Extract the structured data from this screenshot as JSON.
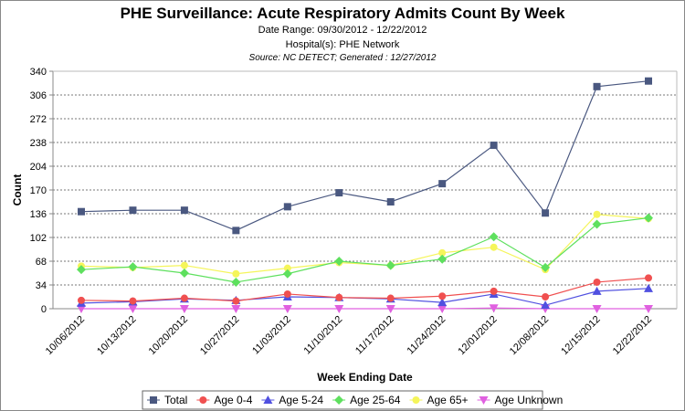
{
  "chart_data": {
    "type": "line",
    "title": "PHE Surveillance: Acute Respiratory Admits Count By Week",
    "subtitles": [
      "Date Range: 09/30/2012 - 12/22/2012",
      "Hospital(s): PHE Network",
      "Source: NC DETECT; Generated : 12/27/2012"
    ],
    "xlabel": "Week Ending Date",
    "ylabel": "Count",
    "ylim": [
      0,
      340
    ],
    "yticks": [
      0,
      34,
      68,
      102,
      136,
      170,
      204,
      238,
      272,
      306,
      340
    ],
    "categories": [
      "10/06/2012",
      "10/13/2012",
      "10/20/2012",
      "10/27/2012",
      "11/03/2012",
      "11/10/2012",
      "11/17/2012",
      "11/24/2012",
      "12/01/2012",
      "12/08/2012",
      "12/15/2012",
      "12/22/2012"
    ],
    "grid": true,
    "legend": "bottom",
    "series": [
      {
        "name": "Total",
        "color": "#4a5880",
        "marker": "square",
        "values": [
          139,
          141,
          141,
          112,
          146,
          166,
          153,
          179,
          234,
          137,
          318,
          326
        ]
      },
      {
        "name": "Age 0-4",
        "color": "#f05050",
        "marker": "circle",
        "values": [
          12,
          11,
          15,
          11,
          21,
          16,
          15,
          18,
          25,
          17,
          38,
          44
        ]
      },
      {
        "name": "Age 5-24",
        "color": "#5050e0",
        "marker": "triangle",
        "values": [
          8,
          10,
          14,
          12,
          17,
          16,
          14,
          9,
          21,
          5,
          25,
          29
        ]
      },
      {
        "name": "Age 25-64",
        "color": "#5ee05e",
        "marker": "diamond",
        "values": [
          56,
          60,
          51,
          38,
          50,
          68,
          62,
          71,
          103,
          59,
          121,
          130
        ]
      },
      {
        "name": "Age 65+",
        "color": "#f5f55a",
        "marker": "circle",
        "values": [
          61,
          59,
          62,
          50,
          58,
          66,
          62,
          80,
          88,
          56,
          135,
          129
        ]
      },
      {
        "name": "Age Unknown",
        "color": "#e060e0",
        "marker": "triangle-down",
        "values": [
          0,
          0,
          0,
          0,
          0,
          0,
          0,
          0,
          1,
          0,
          0,
          0
        ]
      }
    ]
  }
}
